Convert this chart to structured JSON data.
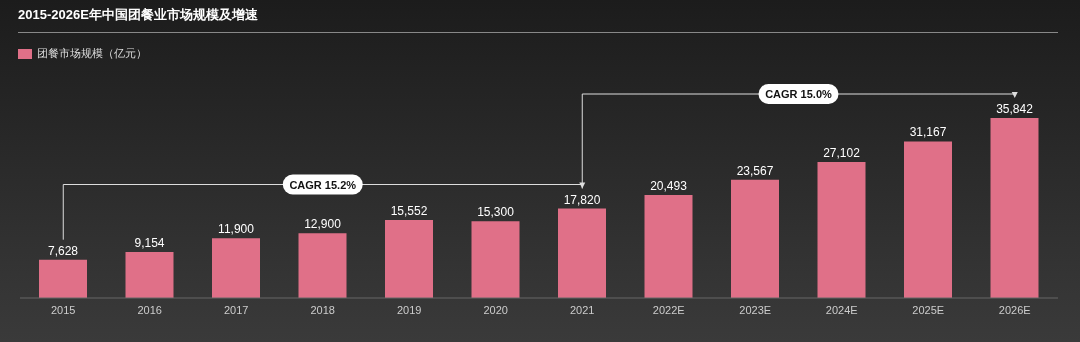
{
  "chart_data": {
    "type": "bar",
    "title": "2015-2026E年中国团餐业市场规模及增速",
    "categories": [
      "2015",
      "2016",
      "2017",
      "2018",
      "2019",
      "2020",
      "2021",
      "2022E",
      "2023E",
      "2024E",
      "2025E",
      "2026E"
    ],
    "series": [
      {
        "name": "团餐市场规模（亿元）",
        "color": "#e07088",
        "values": [
          7628,
          9154,
          11900,
          12900,
          15552,
          15300,
          17820,
          20493,
          23567,
          27102,
          31167,
          35842
        ],
        "value_labels": [
          "7,628",
          "9,154",
          "11,900",
          "12,900",
          "15,552",
          "15,300",
          "17,820",
          "20,493",
          "23,567",
          "27,102",
          "31,167",
          "35,842"
        ]
      }
    ],
    "legend": "top left",
    "annotations": [
      "CAGR 15.2%",
      "CAGR 15.0%"
    ]
  }
}
